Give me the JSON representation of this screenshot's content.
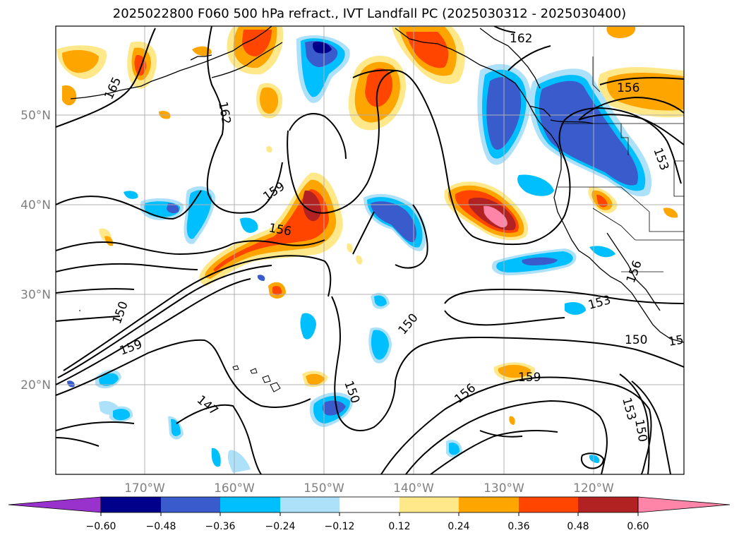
{
  "title": "2025022800 F060 500 hPa refract., IVT Landfall PC (2025030312 - 2025030400)",
  "lat_labels": [
    "50°N",
    "40°N",
    "30°N",
    "20°N"
  ],
  "lon_labels": [
    "170°W",
    "160°W",
    "150°W",
    "140°W",
    "130°W",
    "120°W"
  ],
  "colorbar": {
    "ticks": [
      "−0.60",
      "−0.48",
      "−0.36",
      "−0.24",
      "−0.12",
      "0.12",
      "0.24",
      "0.36",
      "0.48",
      "0.60"
    ],
    "colors": {
      "lt_neg060": "#9932CC",
      "neg060_neg048": "#00008B",
      "neg048_neg036": "#3A5BCC",
      "neg036_neg024": "#00BFFF",
      "neg024_neg012": "#ADE1F9",
      "neg012_012": "#FFFFFF",
      "p012_p024": "#FFE88A",
      "p024_p036": "#FFA500",
      "p036_p048": "#FF4500",
      "p048_p060": "#B22222",
      "gt_p060": "#FF85A8"
    }
  },
  "contour_labels": {
    "c165": "165",
    "c162a": "162",
    "c162b": "162",
    "c156a": "156",
    "c159a": "159",
    "c156b": "156",
    "c150a": "150",
    "c159b": "159",
    "c147": "147",
    "c150b": "150",
    "c150c": "150",
    "c156c": "156",
    "c159c": "159",
    "c153a": "153",
    "c156d": "156",
    "c153b": "153",
    "c150d": "150",
    "c153c": "153",
    "c150e": "150",
    "c15": "15"
  }
}
